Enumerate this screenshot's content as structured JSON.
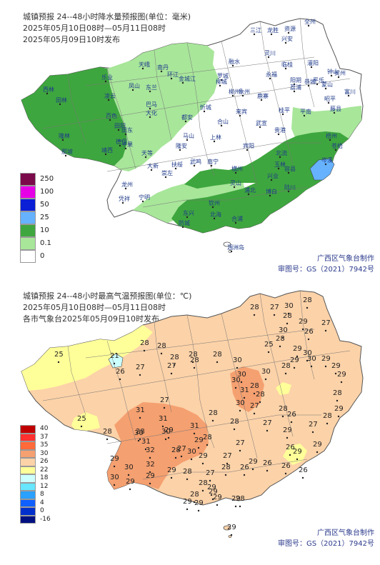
{
  "precip": {
    "title_lines": [
      "城镇预报 24--48小时降水量预报图(单位：毫米)",
      "2025年05月10日08时—05月11日08时",
      "2025年05月09日10时发布"
    ],
    "legend": [
      {
        "label": "250",
        "color": "#7a0a4a"
      },
      {
        "label": "100",
        "color": "#e600e6"
      },
      {
        "label": "50",
        "color": "#0a1fd6"
      },
      {
        "label": "25",
        "color": "#66b2ff"
      },
      {
        "label": "10",
        "color": "#3ea63e"
      },
      {
        "label": "0.1",
        "color": "#a8e69a"
      },
      {
        "label": "0",
        "color": "#ffffff"
      }
    ],
    "credit_lines": [
      "广西区气象台制作",
      "审图号：GS（2021）7942号"
    ],
    "cities": [
      "西林",
      "田林",
      "乐业",
      "天峨",
      "南丹",
      "凌云",
      "凤山",
      "东兰",
      "环江",
      "金城江",
      "罗城",
      "融水",
      "三江",
      "龙胜",
      "资源",
      "全州",
      "兴安",
      "灌阳",
      "恭城",
      "平乐",
      "阳朔",
      "临桂",
      "永福",
      "荔浦",
      "灵川",
      "象州",
      "来宾",
      "武宣",
      "桂平",
      "平南",
      "藤县",
      "岑溪",
      "容县",
      "北流",
      "玉林",
      "陆川",
      "博白",
      "合浦",
      "北海",
      "钦州",
      "防城",
      "东兴",
      "浦北",
      "灵山",
      "横州",
      "南宁",
      "宾阳",
      "上林",
      "马山",
      "都安",
      "大化",
      "巴马",
      "百色",
      "隆林",
      "德保",
      "靖西",
      "那坡",
      "田阳",
      "田东",
      "平果",
      "天等",
      "大新",
      "龙州",
      "凭祥",
      "宁明",
      "崇左",
      "扶绥",
      "隆安",
      "武鸣",
      "柳州",
      "柳城",
      "鹿寨",
      "忻城",
      "合山",
      "贵港",
      "梧州",
      "贺州",
      "昭平",
      "蒙山",
      "钟山",
      "富川",
      "苍梧",
      "涠洲岛",
      "兴业"
    ]
  },
  "temp": {
    "title_lines": [
      "城镇预报 24--48小时最高气温预报图(单位：℃)",
      "2025年05月10日08时—05月11日08时",
      "各市气象台2025年05月09日10时发布"
    ],
    "legend": [
      {
        "label": "40",
        "color": "#c00000"
      },
      {
        "label": "37",
        "color": "#ff3030"
      },
      {
        "label": "35",
        "color": "#ff6a3a"
      },
      {
        "label": "30",
        "color": "#f5a070"
      },
      {
        "label": "26",
        "color": "#fcd2a8"
      },
      {
        "label": "22",
        "color": "#ffff99"
      },
      {
        "label": "18",
        "color": "#ccffff"
      },
      {
        "label": "12",
        "color": "#66e6ff"
      },
      {
        "label": "8",
        "color": "#2aa0ff"
      },
      {
        "label": "4",
        "color": "#1060ff"
      },
      {
        "label": "0",
        "color": "#0030cc"
      },
      {
        "label": "-16",
        "color": "#001080"
      }
    ],
    "credit_lines": [
      "广西区气象台制作",
      "审图号：GS（2021）7942号"
    ],
    "values": [
      25,
      21,
      26,
      28,
      28,
      27,
      28,
      27,
      28,
      28,
      30,
      28,
      28,
      27,
      30,
      28,
      28,
      29,
      26,
      27,
      30,
      28,
      25,
      29,
      30,
      29,
      28,
      30,
      29,
      29,
      29,
      30,
      30,
      31,
      30,
      28,
      27,
      28,
      26,
      25,
      28,
      31,
      31,
      29,
      28,
      28,
      27,
      30,
      31,
      29,
      28,
      28,
      27,
      29,
      27,
      28,
      29,
      28,
      30,
      28,
      27,
      26,
      29,
      29,
      26,
      26,
      26,
      30,
      32,
      30,
      29,
      28,
      27,
      30,
      32,
      31,
      29,
      28,
      26,
      29,
      27,
      28,
      29,
      28,
      27,
      28,
      28,
      29,
      29,
      29,
      29,
      29,
      29,
      29,
      30,
      29,
      29
    ]
  }
}
